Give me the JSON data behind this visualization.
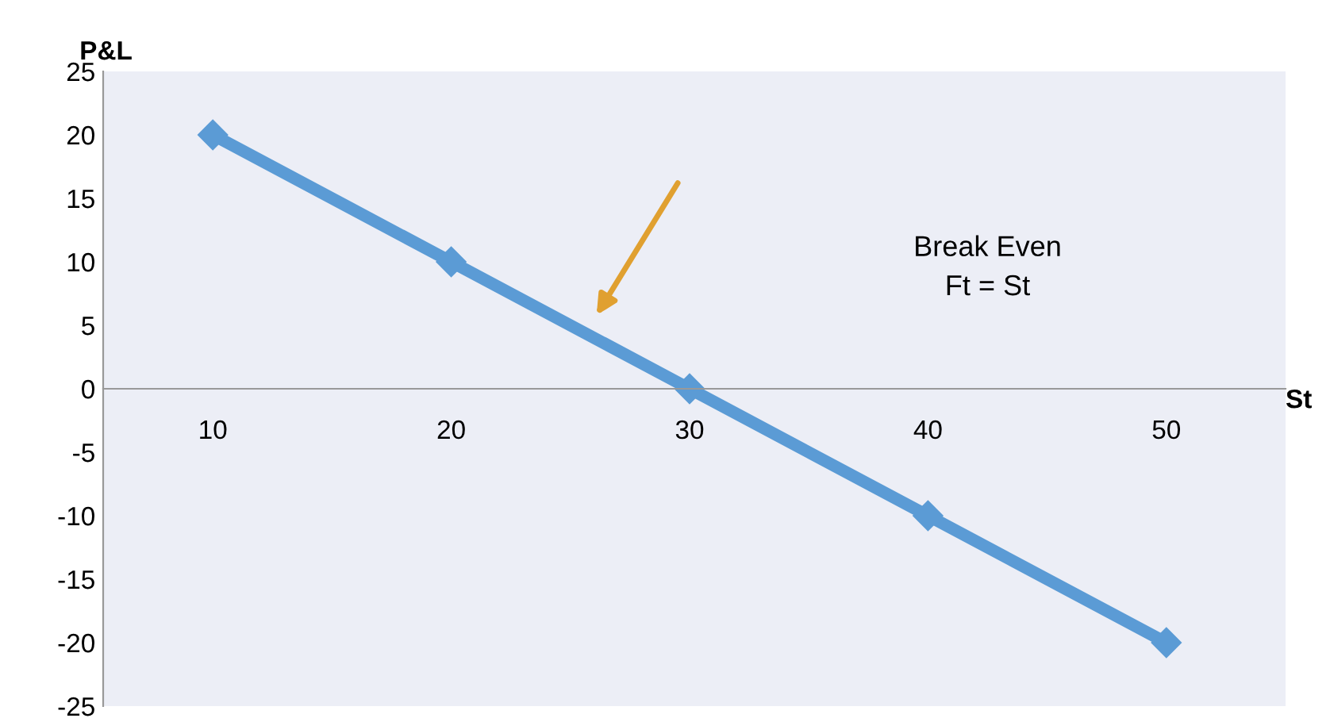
{
  "chart_data": {
    "type": "line",
    "ylabel": "P&L",
    "xlabel": "St",
    "categories": [
      "10",
      "20",
      "30",
      "40",
      "50"
    ],
    "series": [
      {
        "color": "#5b9bd5",
        "values": [
          20,
          10,
          0,
          -10,
          -20
        ]
      }
    ],
    "ylim": [
      -25,
      25
    ],
    "yticks": [
      -25,
      -20,
      -15,
      -10,
      -5,
      0,
      5,
      10,
      15,
      20,
      25
    ],
    "marker": "diamond",
    "line_style": "solid",
    "grid": false,
    "legend": false,
    "annotations": [
      "Break Even\nFt = St"
    ]
  }
}
